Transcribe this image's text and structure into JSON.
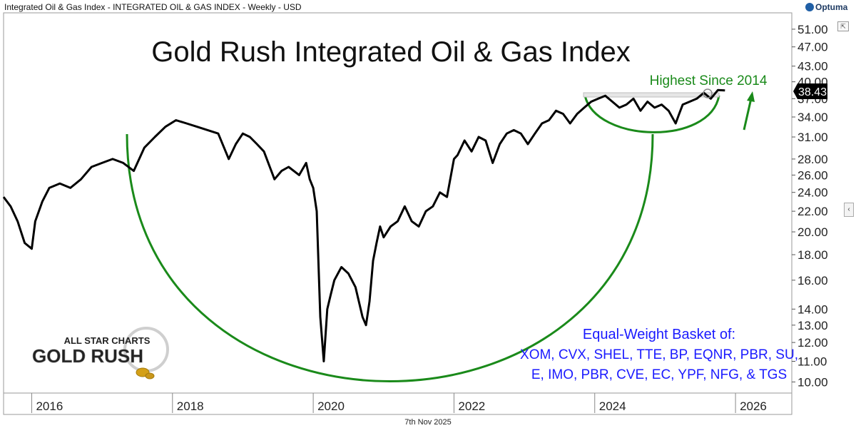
{
  "header": {
    "chart_title": "Integrated Oil & Gas Index - INTEGRATED OIL & GAS INDEX - Weekly - USD",
    "brand": "Optuma"
  },
  "footer": {
    "date": "7th Nov 2025"
  },
  "logo": {
    "line1": "ALL STAR CHARTS",
    "line2": "GOLD RUSH"
  },
  "colors": {
    "price_line": "#000000",
    "annotation": "#1a8a1a",
    "basket_text": "#1a1aff",
    "axis": "#555555"
  },
  "chart_data": {
    "type": "line",
    "title": "Gold Rush Integrated Oil & Gas Index",
    "y_scale": "log",
    "ylim": [
      9.5,
      55
    ],
    "xlim": [
      2015.6,
      2026.8
    ],
    "y_ticks": [
      10.0,
      11.0,
      12.0,
      13.0,
      14.0,
      16.0,
      18.0,
      20.0,
      22.0,
      24.0,
      26.0,
      28.0,
      31.0,
      34.0,
      37.0,
      40.0,
      43.0,
      47.0,
      51.0
    ],
    "y_tick_labels": [
      "10.00",
      "11.00",
      "12.00",
      "13.00",
      "14.00",
      "16.00",
      "18.00",
      "20.00",
      "22.00",
      "24.00",
      "26.00",
      "28.00",
      "31.00",
      "34.00",
      "37.00",
      "40.00",
      "43.00",
      "47.00",
      "51.00"
    ],
    "x_ticks": [
      2016,
      2018,
      2020,
      2022,
      2024,
      2026
    ],
    "x_tick_labels": [
      "2016",
      "2018",
      "2020",
      "2022",
      "2024",
      "2026"
    ],
    "last_value": 38.43,
    "last_value_label": "38.43",
    "series": [
      {
        "x": [
          2015.6,
          2015.7,
          2015.8,
          2015.9,
          2016.0,
          2016.05,
          2016.15,
          2016.25,
          2016.4,
          2016.55,
          2016.7,
          2016.85,
          2017.0,
          2017.15,
          2017.3,
          2017.45,
          2017.6,
          2017.75,
          2017.9,
          2018.05,
          2018.2,
          2018.35,
          2018.5,
          2018.65,
          2018.8,
          2018.9,
          2019.0,
          2019.1,
          2019.2,
          2019.3,
          2019.45,
          2019.55,
          2019.65,
          2019.8,
          2019.9,
          2019.95,
          2020.0,
          2020.05,
          2020.1,
          2020.15,
          2020.2,
          2020.25,
          2020.3,
          2020.4,
          2020.5,
          2020.6,
          2020.7,
          2020.75,
          2020.8,
          2020.85,
          2020.9,
          2020.95,
          2021.0,
          2021.1,
          2021.2,
          2021.3,
          2021.4,
          2021.5,
          2021.6,
          2021.7,
          2021.8,
          2021.9,
          2022.0,
          2022.05,
          2022.15,
          2022.25,
          2022.35,
          2022.45,
          2022.55,
          2022.65,
          2022.75,
          2022.85,
          2022.95,
          2023.05,
          2023.15,
          2023.25,
          2023.35,
          2023.45,
          2023.55,
          2023.65,
          2023.75,
          2023.85,
          2023.95,
          2024.05,
          2024.15,
          2024.25,
          2024.35,
          2024.45,
          2024.55,
          2024.65,
          2024.75,
          2024.85,
          2024.95,
          2025.05,
          2025.15,
          2025.2,
          2025.25,
          2025.35,
          2025.45,
          2025.55,
          2025.65,
          2025.75,
          2025.85
        ],
        "values": [
          23.5,
          22.5,
          21.0,
          19.0,
          18.5,
          21.0,
          23.0,
          24.5,
          25.0,
          24.5,
          25.5,
          27.0,
          27.5,
          28.0,
          27.5,
          26.5,
          29.5,
          31.0,
          32.5,
          33.5,
          33.0,
          32.5,
          32.0,
          31.5,
          28.0,
          30.0,
          31.5,
          31.0,
          30.0,
          29.0,
          25.5,
          26.5,
          27.0,
          26.0,
          27.5,
          25.5,
          24.5,
          22.0,
          13.5,
          11.0,
          14.0,
          15.0,
          16.0,
          17.0,
          16.5,
          15.5,
          13.5,
          13.0,
          14.5,
          17.5,
          19.0,
          20.5,
          19.5,
          20.5,
          21.0,
          22.5,
          21.0,
          20.5,
          22.0,
          22.5,
          24.0,
          23.5,
          28.0,
          28.5,
          30.5,
          29.0,
          31.0,
          30.5,
          27.5,
          30.0,
          31.5,
          32.0,
          31.5,
          30.0,
          31.5,
          33.0,
          33.5,
          35.0,
          34.5,
          33.0,
          34.5,
          35.5,
          36.5,
          37.0,
          37.5,
          36.5,
          35.5,
          36.0,
          37.0,
          35.0,
          36.5,
          35.5,
          36.0,
          35.0,
          33.0,
          34.5,
          36.0,
          36.5,
          37.0,
          38.0,
          37.0,
          38.5,
          38.43
        ]
      }
    ],
    "annotations": {
      "callout": "Highest Since 2014",
      "basket_title": "Equal-Weight Basket of:",
      "basket_line1": "XOM, CVX, SHEL, TTE, BP, EQNR, PBR, SU,",
      "basket_line2": "E, IMO, PBR, CVE, EC, YPF, NFG, & TGS"
    }
  }
}
